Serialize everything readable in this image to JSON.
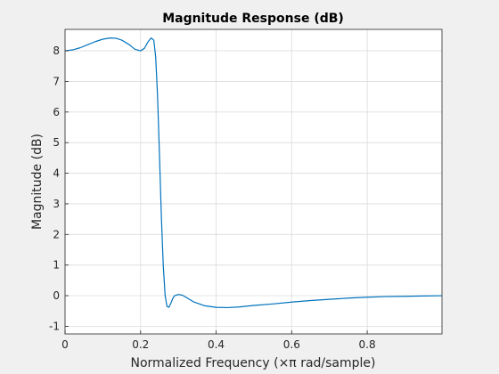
{
  "chart_data": {
    "type": "line",
    "title": "Magnitude Response (dB)",
    "xlabel": "Normalized Frequency (×π rad/sample)",
    "ylabel": "Magnitude (dB)",
    "xlim": [
      0,
      0.998
    ],
    "ylim": [
      -1.25,
      8.7
    ],
    "xticks": [
      0,
      0.2,
      0.4,
      0.6,
      0.8
    ],
    "xtick_labels": [
      "0",
      "0.2",
      "0.4",
      "0.6",
      "0.8"
    ],
    "yticks": [
      -1,
      0,
      1,
      2,
      3,
      4,
      5,
      6,
      7,
      8
    ],
    "ytick_labels": [
      "-1",
      "0",
      "1",
      "2",
      "3",
      "4",
      "5",
      "6",
      "7",
      "8"
    ],
    "grid": true,
    "series": [
      {
        "color": "#0072bd",
        "x": [
          0,
          0.02,
          0.04,
          0.06,
          0.08,
          0.1,
          0.12,
          0.135,
          0.15,
          0.17,
          0.185,
          0.2,
          0.21,
          0.22,
          0.228,
          0.235,
          0.24,
          0.245,
          0.25,
          0.255,
          0.26,
          0.265,
          0.27,
          0.275,
          0.28,
          0.285,
          0.29,
          0.3,
          0.31,
          0.32,
          0.34,
          0.37,
          0.4,
          0.43,
          0.46,
          0.5,
          0.55,
          0.6,
          0.65,
          0.7,
          0.75,
          0.8,
          0.85,
          0.9,
          0.95,
          0.998
        ],
        "y": [
          8.0,
          8.03,
          8.1,
          8.2,
          8.3,
          8.38,
          8.42,
          8.41,
          8.35,
          8.2,
          8.05,
          8.0,
          8.08,
          8.3,
          8.42,
          8.35,
          7.8,
          6.5,
          4.6,
          2.6,
          1.0,
          0.0,
          -0.35,
          -0.38,
          -0.25,
          -0.1,
          0.0,
          0.04,
          0.02,
          -0.05,
          -0.2,
          -0.33,
          -0.38,
          -0.39,
          -0.37,
          -0.32,
          -0.27,
          -0.21,
          -0.16,
          -0.12,
          -0.08,
          -0.05,
          -0.03,
          -0.02,
          -0.01,
          0.0
        ]
      }
    ]
  }
}
